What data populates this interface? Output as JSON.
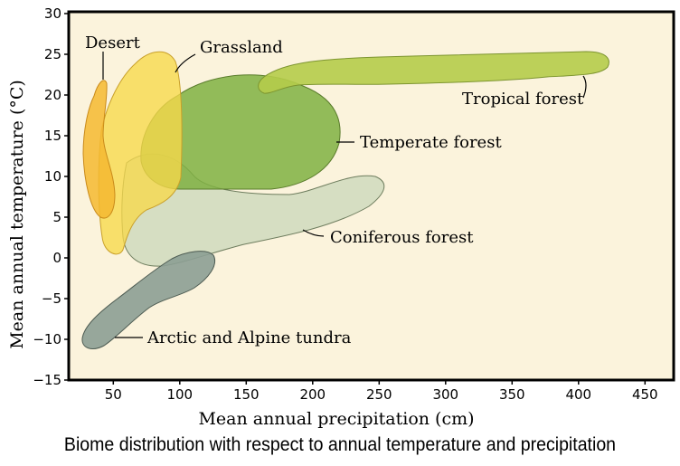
{
  "figure": {
    "caption": "Biome distribution with respect to annual temperature and precipitation",
    "x_axis_label": "Mean annual precipitation (cm)",
    "y_axis_label": "Mean annual temperature (°C)",
    "x_ticks": [
      "50",
      "100",
      "150",
      "200",
      "250",
      "300",
      "350",
      "400",
      "450"
    ],
    "y_ticks": [
      "30",
      "25",
      "20",
      "15",
      "10",
      "5",
      "0",
      "−5",
      "−10",
      "−15"
    ],
    "x_range": [
      20,
      475
    ],
    "y_range": [
      -15,
      30
    ],
    "plot_background": "#fbf3dc"
  },
  "biomes": [
    {
      "name": "Desert",
      "color": "#f5b830"
    },
    {
      "name": "Grassland",
      "color": "#f7d84a"
    },
    {
      "name": "Temperate forest",
      "color": "#7fb042"
    },
    {
      "name": "Tropical forest",
      "color": "#b5cc4a"
    },
    {
      "name": "Coniferous forest",
      "color": "#cfd9bd"
    },
    {
      "name": "Arctic and Alpine tundra",
      "color": "#8c9e94"
    }
  ]
}
